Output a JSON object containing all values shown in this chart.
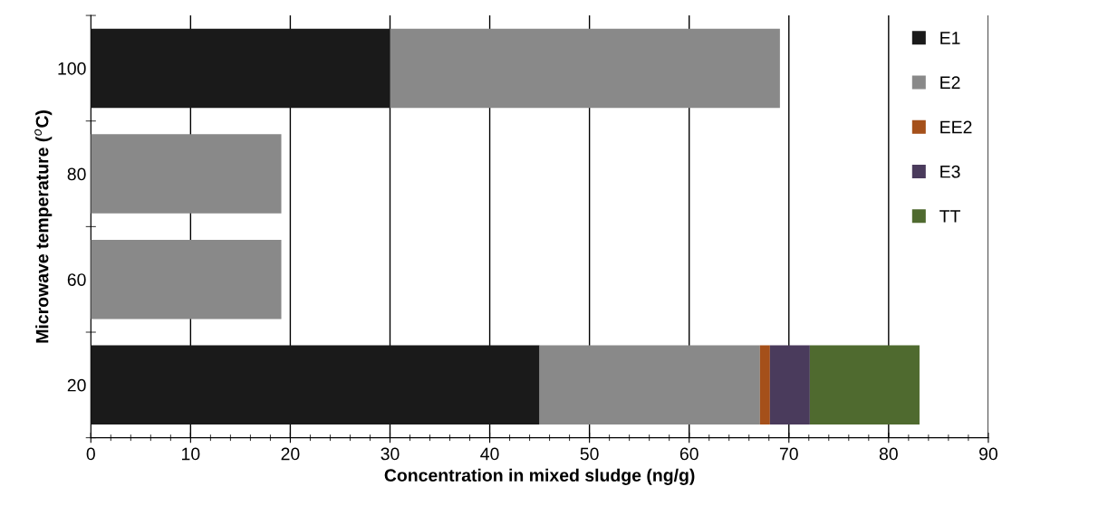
{
  "chart_data": {
    "type": "bar",
    "orientation": "horizontal",
    "stacked": true,
    "categories": [
      "100",
      "80",
      "60",
      "20"
    ],
    "series": [
      {
        "name": "E1",
        "color": "#1a1a1a",
        "values": [
          30.0,
          null,
          null,
          45.0
        ]
      },
      {
        "name": "E2",
        "color": "#898989",
        "values": [
          39.1,
          19.1,
          19.1,
          22.1
        ]
      },
      {
        "name": "EE2",
        "color": "#a5501a",
        "values": [
          null,
          null,
          null,
          1.0
        ]
      },
      {
        "name": "E3",
        "color": "#4a3b5c",
        "values": [
          null,
          null,
          null,
          4.0
        ]
      },
      {
        "name": "TT",
        "color": "#4f6a2f",
        "values": [
          null,
          null,
          null,
          11.0
        ]
      }
    ],
    "xlabel": "Concentration in mixed sludge (ng/g)",
    "ylabel": "Microwave temperature ($^{o}$C)",
    "xlim": [
      0,
      90
    ],
    "xticks": [
      0,
      10,
      20,
      30,
      40,
      50,
      60,
      70,
      80,
      90
    ],
    "grid": "x",
    "legend": "top right"
  }
}
